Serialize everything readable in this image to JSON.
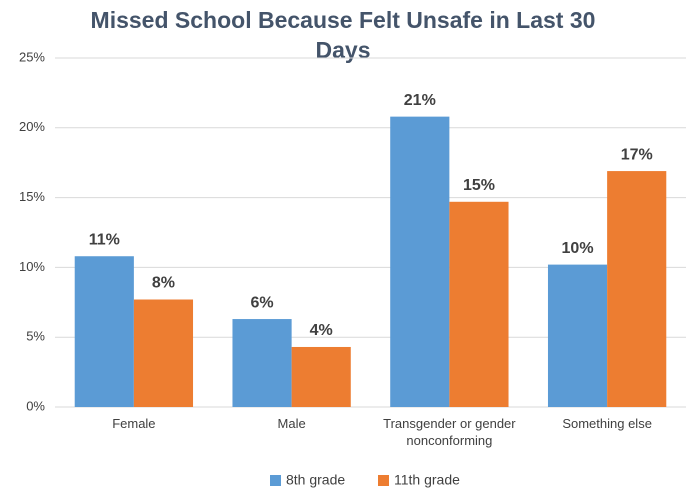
{
  "chart_data": {
    "type": "bar",
    "title": "Missed School Because Felt Unsafe in Last 30 Days",
    "categories": [
      "Female",
      "Male",
      "Transgender or gender nonconforming",
      "Something else"
    ],
    "series": [
      {
        "name": "8th grade",
        "color": "#5b9bd5",
        "values": [
          10.8,
          6.3,
          20.8,
          10.2
        ],
        "value_labels": [
          "11%",
          "6%",
          "21%",
          "10%"
        ]
      },
      {
        "name": "11th grade",
        "color": "#ed7d31",
        "values": [
          7.7,
          4.3,
          14.7,
          16.9
        ],
        "value_labels": [
          "8%",
          "4%",
          "15%",
          "17%"
        ]
      }
    ],
    "ylim": [
      0,
      25
    ],
    "yticks": [
      {
        "value": 0,
        "label": "0%"
      },
      {
        "value": 5,
        "label": "5%"
      },
      {
        "value": 10,
        "label": "10%"
      },
      {
        "value": 15,
        "label": "15%"
      },
      {
        "value": 20,
        "label": "20%"
      },
      {
        "value": 25,
        "label": "25%"
      }
    ],
    "grid": true,
    "legend": "bottom"
  }
}
